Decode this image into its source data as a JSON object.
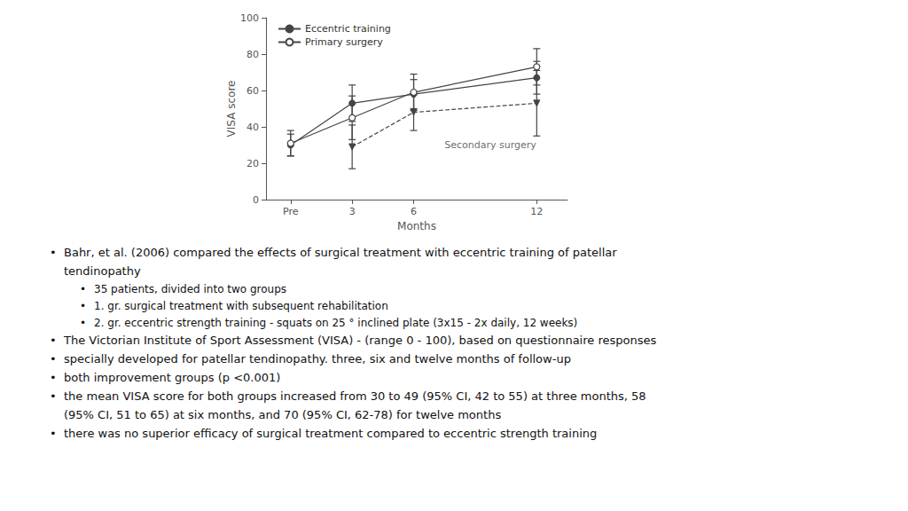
{
  "chart_data": {
    "type": "line",
    "xlabel": "Months",
    "ylabel": "VISA score",
    "xlim": [
      -1.2,
      13.5
    ],
    "xticks": [
      {
        "value": 0,
        "label": "Pre"
      },
      3,
      6,
      12
    ],
    "ylim": [
      0,
      100
    ],
    "yticks": [
      0,
      20,
      40,
      60,
      80,
      100
    ],
    "grid": false,
    "legend": "upper left",
    "series": [
      {
        "name": "Eccentric training",
        "color": "#444444",
        "marker": "circle",
        "line_style": "solid",
        "x": [
          0,
          3,
          6,
          12
        ],
        "values": [
          30,
          53,
          58,
          67
        ],
        "error_low": [
          6,
          10,
          8,
          9
        ],
        "error_high": [
          6,
          10,
          8,
          9
        ]
      },
      {
        "name": "Primary surgery",
        "color": "#444444",
        "marker": "open_circle",
        "line_style": "solid",
        "x": [
          0,
          3,
          6,
          12
        ],
        "values": [
          31,
          45,
          59,
          73
        ],
        "error_low": [
          7,
          12,
          10,
          10
        ],
        "error_high": [
          7,
          12,
          10,
          10
        ]
      },
      {
        "color": "#444444",
        "marker": "triangle_down",
        "line_style": "dashed",
        "x": [
          3,
          6,
          12
        ],
        "values": [
          29,
          48,
          53
        ],
        "error_low": [
          12,
          10,
          18
        ],
        "error_high": [
          12,
          10,
          18
        ]
      }
    ],
    "annotations": [
      {
        "text": "Secondary surgery",
        "x": 7.5,
        "y": 30
      }
    ]
  },
  "text_lines": [
    {
      "bullet": "•",
      "indent": 0,
      "text": "Bahr, et al. (2006) compared the effects of surgical treatment with eccentric training of patellar"
    },
    {
      "indent": 0,
      "text": "tendinopathy"
    },
    {
      "bullet": "•",
      "indent": 1,
      "text": "35 patients, divided into two groups"
    },
    {
      "bullet": "•",
      "indent": 1,
      "text": "1. gr. surgical treatment with subsequent rehabilitation"
    },
    {
      "bullet": "•",
      "indent": 1,
      "text": "2. gr. eccentric strength training - squats on 25 ° inclined plate (3x15 - 2x daily, 12 weeks)"
    },
    {
      "bullet": "•",
      "indent": 0,
      "text": "The Victorian Institute of Sport Assessment (VISA) - (range 0 - 100), based on questionnaire responses"
    },
    {
      "bullet": "•",
      "indent": 0,
      "text": "specially developed for patellar tendinopathy. three, six and twelve months of follow-up"
    },
    {
      "bullet": "•",
      "indent": 0,
      "text": "both improvement groups (p <0.001)"
    },
    {
      "bullet": "•",
      "indent": 0,
      "text": "the mean VISA score for both groups increased from 30 to 49 (95% CI, 42 to 55) at three months, 58"
    },
    {
      "indent": 0,
      "text": "(95% CI, 51 to 65) at six months, and 70 (95% CI, 62-78) for twelve months"
    },
    {
      "bullet": "•",
      "indent": 0,
      "text": "there was no superior efficacy of surgical treatment compared to eccentric strength training"
    }
  ]
}
